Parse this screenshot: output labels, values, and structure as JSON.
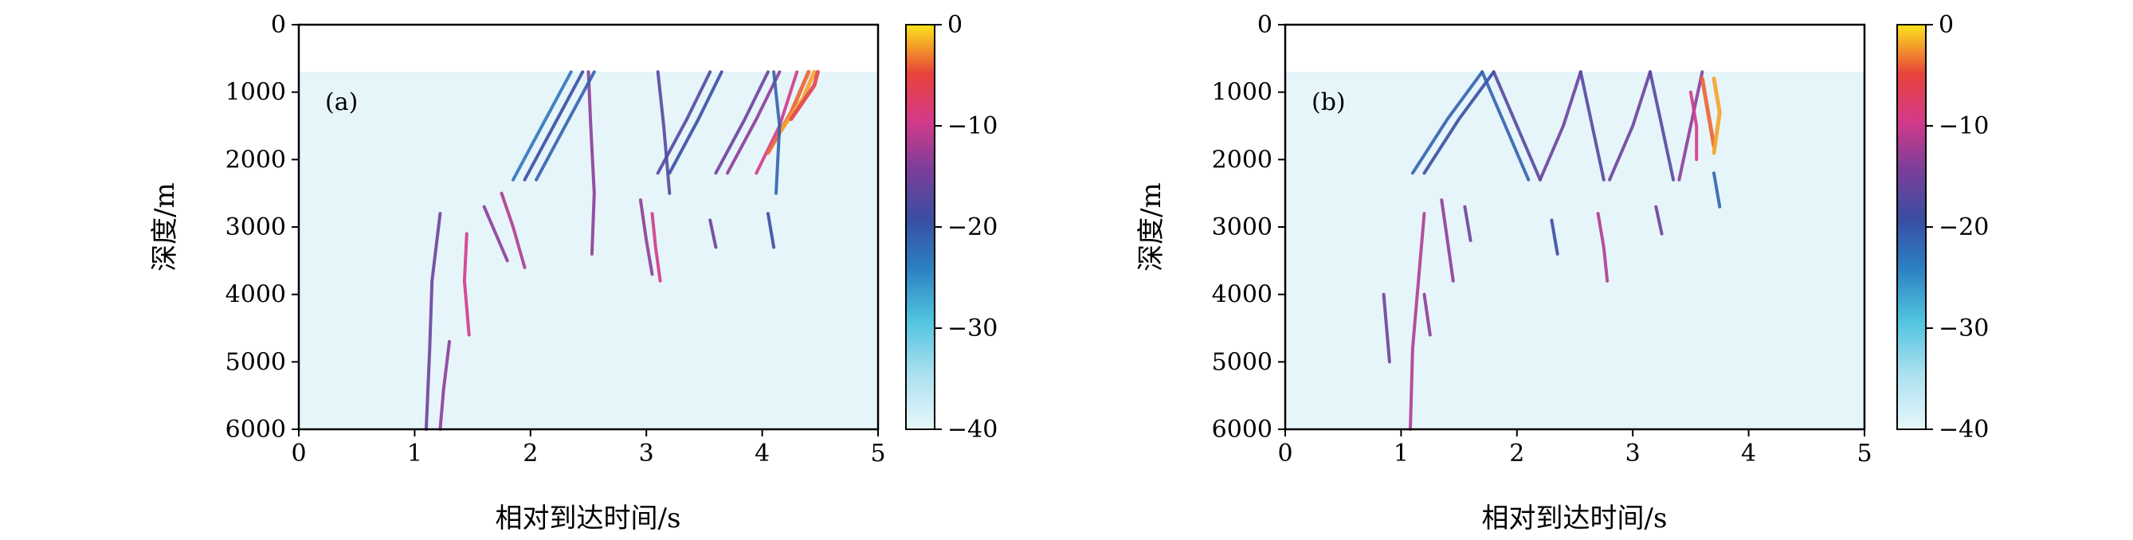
{
  "chart_data": [
    {
      "type": "heatmap",
      "panel_label": "(a)",
      "xlabel": "相对到达时间/s",
      "ylabel": "深度/m",
      "xlim": [
        0,
        5
      ],
      "ylim": [
        6000,
        0
      ],
      "xticks": [
        "0",
        "1",
        "2",
        "3",
        "4",
        "5"
      ],
      "yticks": [
        "0",
        "1000",
        "2000",
        "3000",
        "4000",
        "5000",
        "6000"
      ],
      "data_top_depth": 700,
      "colorbar": {
        "ticks": [
          "0",
          "−10",
          "−20",
          "−30",
          "−40"
        ],
        "range": [
          -40,
          0
        ]
      },
      "arrivals": [
        {
          "path": [
            [
              1.22,
              2800
            ],
            [
              1.15,
              3800
            ],
            [
              1.13,
              4800
            ],
            [
              1.1,
              6000
            ]
          ],
          "level": -16
        },
        {
          "path": [
            [
              1.3,
              4700
            ],
            [
              1.25,
              5400
            ],
            [
              1.22,
              6000
            ]
          ],
          "level": -14
        },
        {
          "path": [
            [
              1.45,
              3100
            ],
            [
              1.43,
              3800
            ],
            [
              1.47,
              4600
            ]
          ],
          "level": -10
        },
        {
          "path": [
            [
              1.6,
              2700
            ],
            [
              1.7,
              3100
            ],
            [
              1.8,
              3500
            ]
          ],
          "level": -14
        },
        {
          "path": [
            [
              1.75,
              2500
            ],
            [
              1.85,
              3000
            ],
            [
              1.95,
              3600
            ]
          ],
          "level": -12
        },
        {
          "path": [
            [
              2.5,
              700
            ],
            [
              2.52,
              1500
            ],
            [
              2.55,
              2500
            ],
            [
              2.53,
              3400
            ]
          ],
          "level": -14
        },
        {
          "path": [
            [
              1.95,
              2300
            ],
            [
              2.2,
              1500
            ],
            [
              2.45,
              700
            ]
          ],
          "level": -20
        },
        {
          "path": [
            [
              2.05,
              2300
            ],
            [
              2.3,
              1500
            ],
            [
              2.55,
              700
            ]
          ],
          "level": -22
        },
        {
          "path": [
            [
              1.85,
              2300
            ],
            [
              2.1,
              1500
            ],
            [
              2.35,
              700
            ]
          ],
          "level": -24
        },
        {
          "path": [
            [
              3.05,
              2800
            ],
            [
              3.08,
              3300
            ],
            [
              3.12,
              3800
            ]
          ],
          "level": -10
        },
        {
          "path": [
            [
              2.95,
              2600
            ],
            [
              3.0,
              3200
            ],
            [
              3.05,
              3700
            ]
          ],
          "level": -14
        },
        {
          "path": [
            [
              3.1,
              2200
            ],
            [
              3.35,
              1400
            ],
            [
              3.55,
              700
            ]
          ],
          "level": -18
        },
        {
          "path": [
            [
              3.2,
              2200
            ],
            [
              3.45,
              1400
            ],
            [
              3.65,
              700
            ]
          ],
          "level": -20
        },
        {
          "path": [
            [
              3.1,
              700
            ],
            [
              3.15,
              1500
            ],
            [
              3.2,
              2500
            ]
          ],
          "level": -18
        },
        {
          "path": [
            [
              3.6,
              2200
            ],
            [
              3.85,
              1400
            ],
            [
              4.05,
              700
            ]
          ],
          "level": -16
        },
        {
          "path": [
            [
              3.7,
              2200
            ],
            [
              3.95,
              1400
            ],
            [
              4.15,
              700
            ]
          ],
          "level": -14
        },
        {
          "path": [
            [
              3.55,
              2900
            ],
            [
              3.6,
              3300
            ]
          ],
          "level": -16
        },
        {
          "path": [
            [
              3.95,
              2200
            ],
            [
              4.15,
              1500
            ],
            [
              4.3,
              700
            ]
          ],
          "level": -10
        },
        {
          "path": [
            [
              4.05,
              1900
            ],
            [
              4.25,
              1300
            ],
            [
              4.4,
              700
            ]
          ],
          "level": -4
        },
        {
          "path": [
            [
              4.15,
              1600
            ],
            [
              4.35,
              1100
            ],
            [
              4.45,
              700
            ]
          ],
          "level": -2
        },
        {
          "path": [
            [
              4.25,
              1400
            ],
            [
              4.45,
              900
            ],
            [
              4.48,
              700
            ]
          ],
          "level": -6
        },
        {
          "path": [
            [
              4.05,
              2800
            ],
            [
              4.1,
              3300
            ]
          ],
          "level": -20
        },
        {
          "path": [
            [
              4.1,
              700
            ],
            [
              4.15,
              1500
            ],
            [
              4.12,
              2500
            ]
          ],
          "level": -22
        }
      ]
    },
    {
      "type": "heatmap",
      "panel_label": "(b)",
      "xlabel": "相对到达时间/s",
      "ylabel": "深度/m",
      "xlim": [
        0,
        5
      ],
      "ylim": [
        6000,
        0
      ],
      "xticks": [
        "0",
        "1",
        "2",
        "3",
        "4",
        "5"
      ],
      "yticks": [
        "0",
        "1000",
        "2000",
        "3000",
        "4000",
        "5000",
        "6000"
      ],
      "data_top_depth": 700,
      "colorbar": {
        "ticks": [
          "0",
          "−10",
          "−20",
          "−30",
          "−40"
        ],
        "range": [
          -40,
          0
        ]
      },
      "arrivals": [
        {
          "path": [
            [
              1.2,
              2800
            ],
            [
              1.15,
              3800
            ],
            [
              1.1,
              4800
            ],
            [
              1.08,
              6000
            ]
          ],
          "level": -12
        },
        {
          "path": [
            [
              0.85,
              4000
            ],
            [
              0.88,
              4600
            ],
            [
              0.9,
              5000
            ]
          ],
          "level": -16
        },
        {
          "path": [
            [
              1.2,
              4000
            ],
            [
              1.25,
              4600
            ]
          ],
          "level": -14
        },
        {
          "path": [
            [
              1.1,
              2200
            ],
            [
              1.4,
              1400
            ],
            [
              1.7,
              700
            ]
          ],
          "level": -22
        },
        {
          "path": [
            [
              1.2,
              2200
            ],
            [
              1.5,
              1400
            ],
            [
              1.8,
              700
            ]
          ],
          "level": -20
        },
        {
          "path": [
            [
              1.8,
              700
            ],
            [
              2.0,
              1500
            ],
            [
              2.2,
              2300
            ]
          ],
          "level": -18
        },
        {
          "path": [
            [
              1.7,
              700
            ],
            [
              1.9,
              1500
            ],
            [
              2.1,
              2300
            ]
          ],
          "level": -22
        },
        {
          "path": [
            [
              2.2,
              2300
            ],
            [
              2.4,
              1500
            ],
            [
              2.55,
              700
            ]
          ],
          "level": -16
        },
        {
          "path": [
            [
              2.55,
              700
            ],
            [
              2.65,
              1500
            ],
            [
              2.75,
              2300
            ]
          ],
          "level": -18
        },
        {
          "path": [
            [
              2.8,
              2300
            ],
            [
              3.0,
              1500
            ],
            [
              3.15,
              700
            ]
          ],
          "level": -16
        },
        {
          "path": [
            [
              3.15,
              700
            ],
            [
              3.25,
              1500
            ],
            [
              3.35,
              2300
            ]
          ],
          "level": -18
        },
        {
          "path": [
            [
              3.4,
              2300
            ],
            [
              3.5,
              1500
            ],
            [
              3.6,
              700
            ]
          ],
          "level": -14
        },
        {
          "path": [
            [
              3.6,
              800
            ],
            [
              3.65,
              1300
            ],
            [
              3.7,
              1800
            ]
          ],
          "level": -4
        },
        {
          "path": [
            [
              3.7,
              800
            ],
            [
              3.75,
              1300
            ],
            [
              3.7,
              1900
            ]
          ],
          "level": -2
        },
        {
          "path": [
            [
              3.5,
              1000
            ],
            [
              3.55,
              1500
            ],
            [
              3.55,
              2000
            ]
          ],
          "level": -10
        },
        {
          "path": [
            [
              1.35,
              2600
            ],
            [
              1.4,
              3200
            ],
            [
              1.45,
              3800
            ]
          ],
          "level": -14
        },
        {
          "path": [
            [
              1.55,
              2700
            ],
            [
              1.6,
              3200
            ]
          ],
          "level": -16
        },
        {
          "path": [
            [
              2.7,
              2800
            ],
            [
              2.75,
              3300
            ],
            [
              2.78,
              3800
            ]
          ],
          "level": -12
        },
        {
          "path": [
            [
              3.2,
              2700
            ],
            [
              3.25,
              3100
            ]
          ],
          "level": -16
        },
        {
          "path": [
            [
              2.3,
              2900
            ],
            [
              2.35,
              3400
            ]
          ],
          "level": -20
        },
        {
          "path": [
            [
              3.7,
              2200
            ],
            [
              3.75,
              2700
            ]
          ],
          "level": -22
        }
      ]
    }
  ]
}
